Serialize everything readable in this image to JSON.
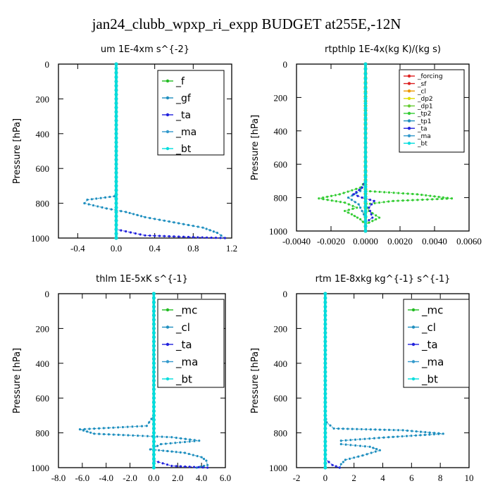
{
  "figure_title": "jan24_clubb_wpxp_ri_expp  BUDGET at255E,-12N",
  "chart_data": [
    {
      "type": "line",
      "title": "um   1E-4xm s^{-2}",
      "ylabel": "Pressure [hPa]",
      "xlim": [
        -0.6,
        1.2
      ],
      "ylim": [
        1000,
        0
      ],
      "xticks": [
        -0.4,
        0.0,
        0.4,
        0.8,
        1.2
      ],
      "xtick_labels": [
        "-0.4",
        "0.0",
        "0.4",
        "0.8",
        "1.2"
      ],
      "yticks": [
        0,
        200,
        400,
        600,
        800,
        1000
      ],
      "legend": "top-right",
      "series": [
        {
          "name": "_f",
          "color": "#22bb22",
          "x": [
            0,
            0,
            0,
            0,
            0,
            0,
            0,
            0,
            0,
            0,
            0
          ],
          "y": [
            0,
            100,
            200,
            300,
            400,
            500,
            600,
            700,
            800,
            900,
            1000
          ]
        },
        {
          "name": "_gf",
          "color": "#1f8fbf",
          "x": [
            0,
            0,
            0,
            -0.02,
            -0.3,
            -0.33,
            -0.1,
            0.1,
            0.3,
            0.6,
            0.9,
            1.05,
            1.13
          ],
          "y": [
            0,
            400,
            740,
            760,
            780,
            800,
            830,
            850,
            880,
            910,
            940,
            970,
            1000
          ]
        },
        {
          "name": "_ta",
          "color": "#2222dd",
          "x": [
            0,
            0,
            0,
            0,
            0.3,
            0.8,
            1.13
          ],
          "y": [
            0,
            700,
            900,
            950,
            985,
            995,
            1000
          ]
        },
        {
          "name": "_ma",
          "color": "#3399cc",
          "x": [
            0,
            0,
            0,
            0,
            0,
            0,
            0
          ],
          "y": [
            0,
            200,
            400,
            600,
            800,
            900,
            1000
          ]
        },
        {
          "name": "_bt",
          "color": "#00dddd",
          "x": [
            0,
            0,
            0,
            0,
            0,
            0,
            0
          ],
          "y": [
            0,
            200,
            400,
            600,
            800,
            900,
            1000
          ]
        }
      ]
    },
    {
      "type": "line",
      "title": "rtpthlp   1E-4x(kg K)/(kg s)",
      "ylabel": "Pressure [hPa]",
      "xlim": [
        -0.004,
        0.006
      ],
      "ylim": [
        1000,
        0
      ],
      "xticks": [
        -0.004,
        -0.002,
        0.0,
        0.002,
        0.004,
        0.006
      ],
      "xtick_labels": [
        "-0.0040",
        "-0.0020",
        "0.0000",
        "0.0020",
        "0.0040",
        "0.0060"
      ],
      "yticks": [
        0,
        200,
        400,
        600,
        800,
        1000
      ],
      "legend": "top-right",
      "series": [
        {
          "name": "_forcing",
          "color": "#dd2222",
          "x": [
            0,
            0,
            0,
            0,
            0
          ],
          "y": [
            0,
            250,
            500,
            750,
            1000
          ]
        },
        {
          "name": "_sf",
          "color": "#dd2222",
          "x": [
            0,
            0,
            0,
            0,
            0
          ],
          "y": [
            0,
            250,
            500,
            750,
            1000
          ]
        },
        {
          "name": "_cl",
          "color": "#ee9900",
          "x": [
            0,
            0,
            0,
            0,
            0
          ],
          "y": [
            0,
            250,
            500,
            750,
            1000
          ]
        },
        {
          "name": "_dp2",
          "color": "#dddd00",
          "x": [
            0,
            0,
            0,
            0,
            0
          ],
          "y": [
            0,
            250,
            500,
            750,
            1000
          ]
        },
        {
          "name": "_dp1",
          "color": "#66cc33",
          "x": [
            0,
            0,
            0,
            0,
            0
          ],
          "y": [
            0,
            250,
            500,
            750,
            1000
          ]
        },
        {
          "name": "_tp2",
          "color": "#33cc33",
          "x": [
            0,
            0,
            -0.0003,
            -0.0015,
            -0.0027,
            -0.0012,
            -0.0005,
            -0.0012,
            -0.0008,
            -0.0003,
            0,
            0.0008,
            0.0002,
            0,
            0.0016,
            0.005,
            0.003,
            0,
            0
          ],
          "y": [
            0,
            700,
            740,
            780,
            805,
            830,
            860,
            880,
            900,
            930,
            960,
            920,
            880,
            840,
            820,
            805,
            780,
            760,
            1000
          ]
        },
        {
          "name": "_tp1",
          "color": "#1f8fbf",
          "x": [
            0,
            0,
            -0.0003,
            -0.001,
            -0.0004,
            -0.0002,
            0,
            0
          ],
          "y": [
            0,
            700,
            760,
            800,
            840,
            880,
            920,
            1000
          ]
        },
        {
          "name": "_ta",
          "color": "#2222dd",
          "x": [
            0,
            0,
            -0.0002,
            -0.0007,
            -0.0002,
            0.0005,
            0.0002,
            0.0004,
            0,
            0
          ],
          "y": [
            0,
            700,
            740,
            780,
            800,
            820,
            860,
            920,
            950,
            1000
          ]
        },
        {
          "name": "_ma",
          "color": "#3399cc",
          "x": [
            0,
            0,
            0
          ],
          "y": [
            0,
            500,
            1000
          ]
        },
        {
          "name": "_bt",
          "color": "#00dddd",
          "x": [
            0,
            0,
            0
          ],
          "y": [
            0,
            500,
            1000
          ]
        }
      ]
    },
    {
      "type": "line",
      "title": "thlm   1E-5xK s^{-1}",
      "ylabel": "Pressure [hPa]",
      "xlim": [
        -8.0,
        6.0
      ],
      "ylim": [
        1000,
        0
      ],
      "xticks": [
        -8.0,
        -6.0,
        -4.0,
        -2.0,
        0.0,
        2.0,
        4.0,
        6.0
      ],
      "xtick_labels": [
        "-8.0",
        "-6.0",
        "-4.0",
        "-2.0",
        "0.0",
        "2.0",
        "4.0",
        "6.0"
      ],
      "yticks": [
        0,
        200,
        400,
        600,
        800,
        1000
      ],
      "legend": "top-right",
      "series": [
        {
          "name": "_mc",
          "color": "#22bb22",
          "x": [
            0,
            0,
            0,
            0,
            0,
            0,
            0,
            0,
            0,
            0,
            0
          ],
          "y": [
            0,
            100,
            200,
            300,
            400,
            500,
            600,
            700,
            800,
            900,
            1000
          ]
        },
        {
          "name": "_cl",
          "color": "#1f8fbf",
          "x": [
            0,
            0,
            -0.6,
            -6.2,
            -5.0,
            1.5,
            3.8,
            0.6,
            -0.3,
            2.6,
            4.0,
            4.4,
            4.5,
            3.6
          ],
          "y": [
            0,
            700,
            760,
            780,
            805,
            825,
            845,
            865,
            895,
            915,
            940,
            960,
            985,
            1000
          ]
        },
        {
          "name": "_ta",
          "color": "#2222dd",
          "x": [
            0,
            0,
            0,
            0,
            1.5,
            4.5
          ],
          "y": [
            0,
            700,
            900,
            960,
            990,
            1000
          ]
        },
        {
          "name": "_ma",
          "color": "#3399cc",
          "x": [
            0,
            0,
            0,
            0,
            0,
            0
          ],
          "y": [
            0,
            200,
            400,
            600,
            800,
            1000
          ]
        },
        {
          "name": "_bt",
          "color": "#00dddd",
          "x": [
            0,
            0,
            0,
            0,
            0,
            0
          ],
          "y": [
            0,
            200,
            400,
            600,
            800,
            1000
          ]
        }
      ]
    },
    {
      "type": "line",
      "title": "rtm   1E-8xkg kg^{-1} s^{-1}",
      "ylabel": "Pressure [hPa]",
      "xlim": [
        -2,
        10
      ],
      "ylim": [
        1000,
        0
      ],
      "xticks": [
        -2,
        0,
        2,
        4,
        6,
        8,
        10
      ],
      "xtick_labels": [
        "-2",
        "0",
        "2",
        "4",
        "6",
        "8",
        "10"
      ],
      "yticks": [
        0,
        200,
        400,
        600,
        800,
        1000
      ],
      "legend": "top-right",
      "series": [
        {
          "name": "_mc",
          "color": "#22bb22",
          "x": [
            0,
            0,
            0,
            0,
            0,
            0,
            0,
            0,
            0,
            0,
            0
          ],
          "y": [
            0,
            100,
            200,
            300,
            400,
            500,
            600,
            700,
            800,
            900,
            1000
          ]
        },
        {
          "name": "_cl",
          "color": "#1f8fbf",
          "x": [
            0,
            0,
            0.1,
            0.6,
            5.4,
            8.2,
            4.4,
            1.1,
            1.1,
            3.1,
            3.8,
            2.6,
            1.4,
            1.1,
            1.0
          ],
          "y": [
            0,
            700,
            740,
            775,
            785,
            805,
            825,
            845,
            865,
            880,
            900,
            930,
            955,
            980,
            1000
          ]
        },
        {
          "name": "_ta",
          "color": "#2222dd",
          "x": [
            0,
            0,
            0,
            0.5,
            1.0
          ],
          "y": [
            0,
            800,
            950,
            985,
            1000
          ]
        },
        {
          "name": "_ma",
          "color": "#3399cc",
          "x": [
            0,
            0,
            0,
            0,
            0,
            0
          ],
          "y": [
            0,
            200,
            400,
            600,
            800,
            1000
          ]
        },
        {
          "name": "_bt",
          "color": "#00dddd",
          "x": [
            0,
            0,
            0,
            0,
            0,
            0
          ],
          "y": [
            0,
            200,
            400,
            600,
            800,
            1000
          ]
        }
      ]
    }
  ]
}
